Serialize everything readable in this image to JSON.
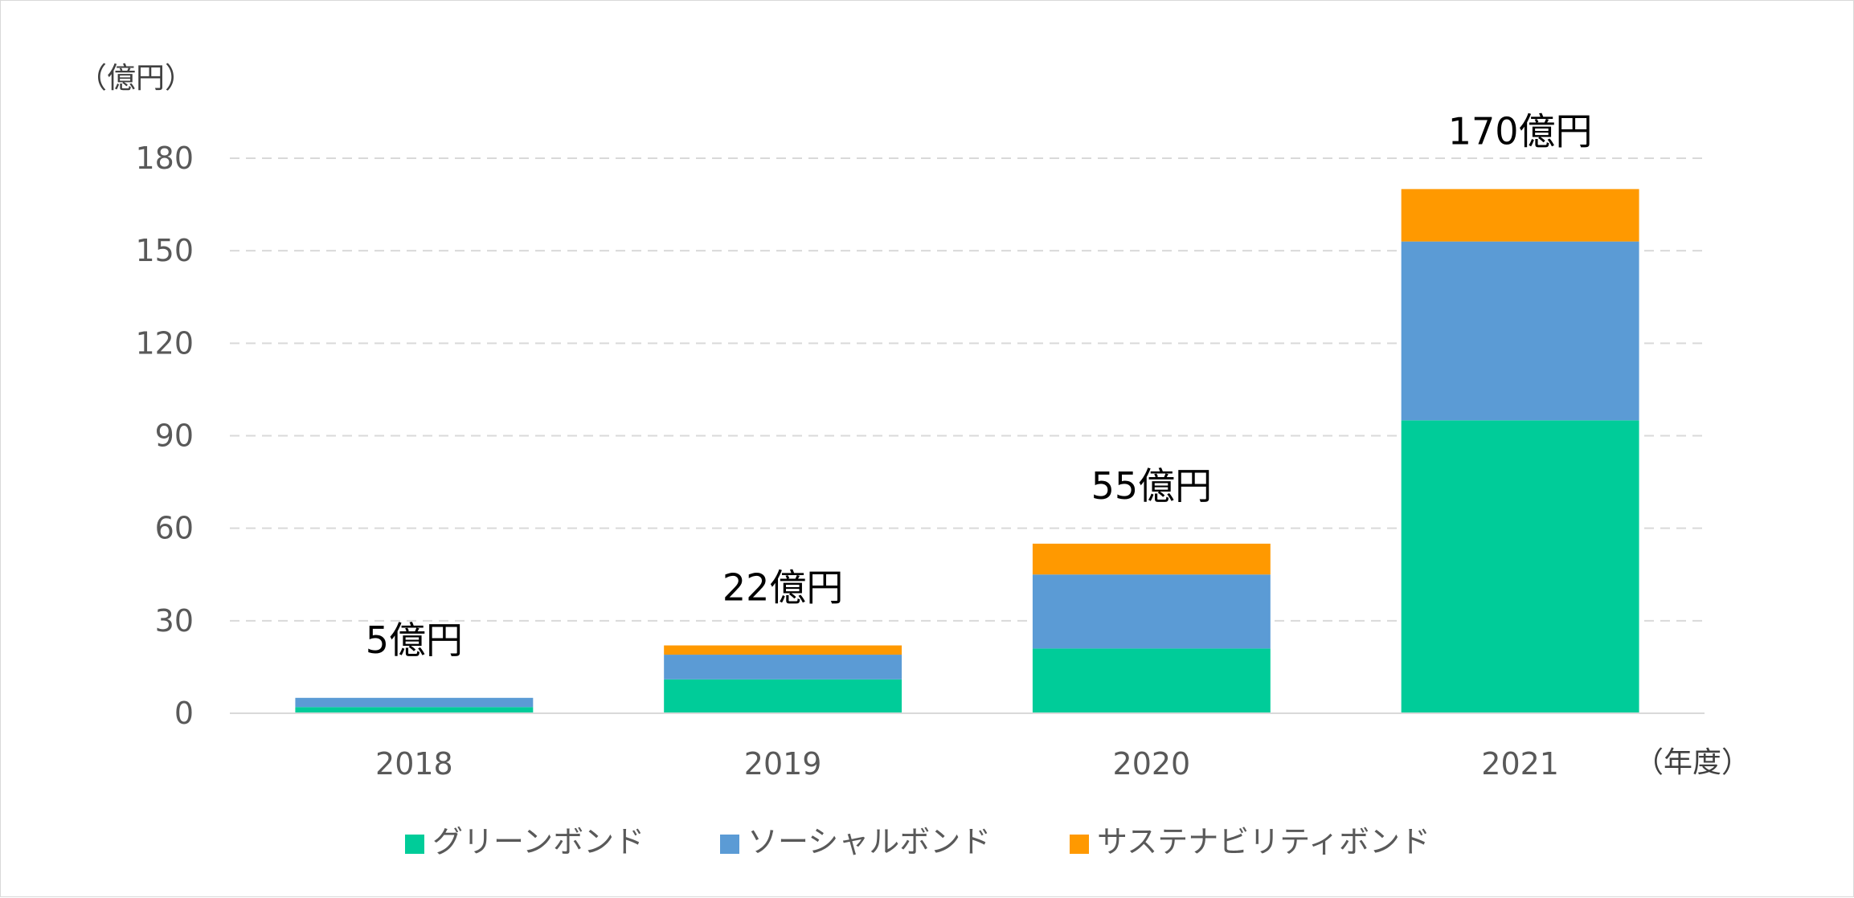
{
  "chart_data": {
    "type": "bar",
    "stacked": true,
    "categories": [
      "2018",
      "2019",
      "2020",
      "2021"
    ],
    "series": [
      {
        "name": "グリーンボンド",
        "color": "#00CC99",
        "values": [
          2,
          11,
          21,
          95
        ]
      },
      {
        "name": "ソーシャルボンド",
        "color": "#5B9BD5",
        "values": [
          3,
          8,
          24,
          58
        ]
      },
      {
        "name": "サステナビリティボンド",
        "color": "#FF9900",
        "values": [
          0,
          3,
          10,
          17
        ]
      }
    ],
    "totals": [
      "5億円",
      "22億円",
      "55億円",
      "170億円"
    ],
    "y_unit_label": "（億円）",
    "x_unit_label": "（年度）",
    "ylim": [
      0,
      180
    ],
    "yticks": [
      0,
      30,
      60,
      90,
      120,
      150,
      180
    ],
    "grid": true,
    "legend_position": "bottom"
  }
}
